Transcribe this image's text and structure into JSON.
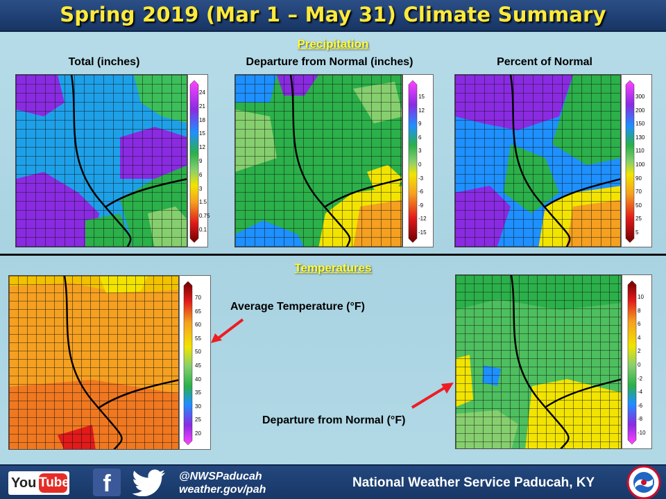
{
  "title": "Spring 2019 (Mar 1 – May 31) Climate Summary",
  "precipitation": {
    "section_label": "Precipitation",
    "maps": [
      {
        "title": "Total (inches)",
        "legend": [
          "24",
          "21",
          "18",
          "15",
          "12",
          "9",
          "6",
          "3",
          "1.5",
          "0.75",
          "0.1"
        ]
      },
      {
        "title": "Departure from Normal (inches)",
        "legend": [
          "15",
          "12",
          "9",
          "6",
          "3",
          "0",
          "-3",
          "-6",
          "-9",
          "-12",
          "-15"
        ]
      },
      {
        "title": "Percent of Normal",
        "legend": [
          "300",
          "200",
          "150",
          "130",
          "110",
          "100",
          "90",
          "70",
          "50",
          "25",
          "5"
        ]
      }
    ]
  },
  "temperatures": {
    "section_label": "Temperatures",
    "avg_legend": [
      "70",
      "65",
      "60",
      "55",
      "50",
      "45",
      "40",
      "35",
      "30",
      "25",
      "20"
    ],
    "dep_legend": [
      "10",
      "8",
      "6",
      "4",
      "2",
      "0",
      "-2",
      "-4",
      "-6",
      "-8",
      "-10"
    ],
    "avg_label": "Average Temperature (°F)",
    "dep_label": "Departure from Normal (°F)"
  },
  "footer": {
    "youtube_you": "You",
    "youtube_tube": "Tube",
    "facebook_glyph": "f",
    "twitter_handle": "@NWSPaducah",
    "website": "weather.gov/pah",
    "office": "National Weather Service Paducah, KY"
  },
  "colors": {
    "title_bg": "#1f3f73",
    "title_text": "#ffea3a",
    "section_text": "#ffff33",
    "arrow": "#ee1c24"
  },
  "icons": [
    "youtube-icon",
    "facebook-icon",
    "twitter-icon",
    "nws-logo-icon"
  ]
}
